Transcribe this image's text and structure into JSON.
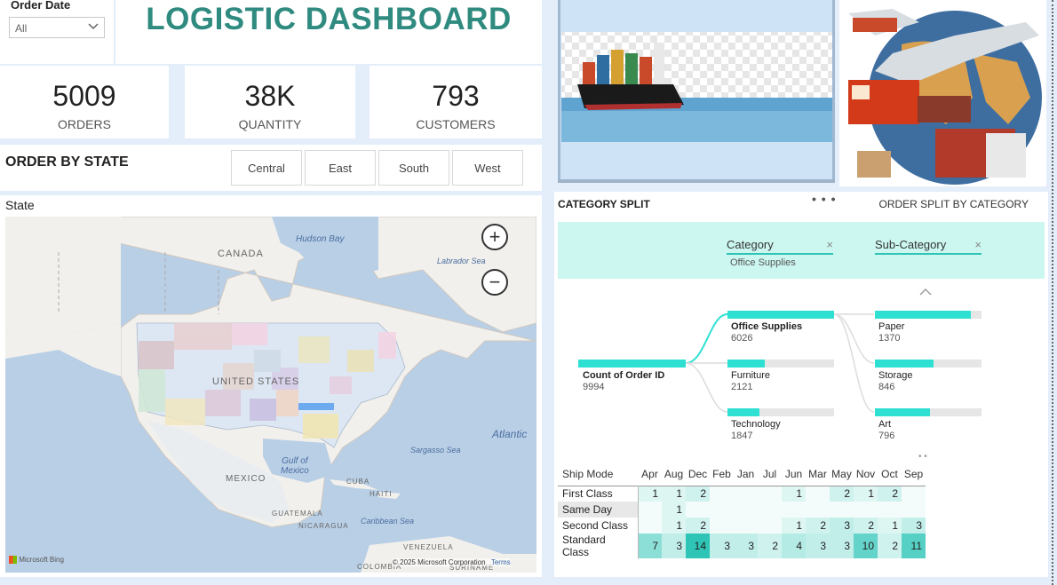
{
  "slicer": {
    "label": "Order Date",
    "value": "All"
  },
  "title": "LOGISTIC DASHBOARD",
  "kpis": {
    "orders": {
      "value": "5009",
      "caption": "ORDERS"
    },
    "quantity": {
      "value": "38K",
      "caption": "QUANTITY"
    },
    "customers": {
      "value": "793",
      "caption": "CUSTOMERS"
    }
  },
  "order_by_state": {
    "title": "ORDER BY STATE",
    "regions": [
      "Central",
      "East",
      "South",
      "West"
    ]
  },
  "map": {
    "title": "State",
    "labels": {
      "canada": "CANADA",
      "us": "UNITED STATES",
      "mexico": "MEXICO",
      "hudson": "Hudson Bay",
      "labrador": "Labrador Sea",
      "atlantic": "Atlantic",
      "sargasso": "Sargasso Sea",
      "gulf": "Gulf of\nMexico",
      "caribbean": "Caribbean Sea",
      "cuba": "CUBA",
      "haiti": "HAITI",
      "guatemala": "GUATEMALA",
      "nicaragua": "NICARAGUA",
      "venezuela": "VENEZUELA",
      "colombia": "COLOMBIA",
      "suriname": "SURINAME"
    },
    "zoom_in": "+",
    "zoom_out": "−",
    "bing": "Microsoft Bing",
    "copyright": "© 2025 Microsoft Corporation",
    "terms": "Terms"
  },
  "category_split": {
    "title": "CATEGORY SPLIT",
    "subtitle": "ORDER SPLIT BY CATEGORY",
    "levels": [
      {
        "label": "Category",
        "selected": "Office Supplies"
      },
      {
        "label": "Sub-Category"
      }
    ],
    "close": "×",
    "root": {
      "label": "Count of Order ID",
      "value": "9994"
    },
    "categories": [
      {
        "label": "Office Supplies",
        "value": "6026",
        "frac": 1.0
      },
      {
        "label": "Furniture",
        "value": "2121",
        "frac": 0.35
      },
      {
        "label": "Technology",
        "value": "1847",
        "frac": 0.3
      }
    ],
    "subcategories": [
      {
        "label": "Paper",
        "value": "1370",
        "frac": 0.9
      },
      {
        "label": "Storage",
        "value": "846",
        "frac": 0.55
      },
      {
        "label": "Art",
        "value": "796",
        "frac": 0.52
      }
    ]
  },
  "matrix": {
    "row_header": "Ship Mode",
    "columns": [
      "Apr",
      "Aug",
      "Dec",
      "Feb",
      "Jan",
      "Jul",
      "Jun",
      "Mar",
      "May",
      "Nov",
      "Oct",
      "Sep"
    ],
    "rows": [
      {
        "label": "First Class",
        "values": [
          "1",
          "1",
          "2",
          "",
          "",
          "",
          "1",
          "",
          "2",
          "1",
          "2",
          ""
        ]
      },
      {
        "label": "Same Day",
        "values": [
          "",
          "1",
          "",
          "",
          "",
          "",
          "",
          "",
          "",
          "",
          "",
          ""
        ]
      },
      {
        "label": "Second Class",
        "values": [
          "",
          "1",
          "2",
          "",
          "",
          "",
          "1",
          "2",
          "3",
          "2",
          "1",
          "3"
        ]
      },
      {
        "label": "Standard Class",
        "values": [
          "7",
          "3",
          "14",
          "3",
          "3",
          "2",
          "4",
          "3",
          "3",
          "10",
          "2",
          "11"
        ]
      }
    ],
    "max_value": 14,
    "colors": {
      "low": "#eafaf7",
      "high": "#2ec4b6"
    }
  }
}
